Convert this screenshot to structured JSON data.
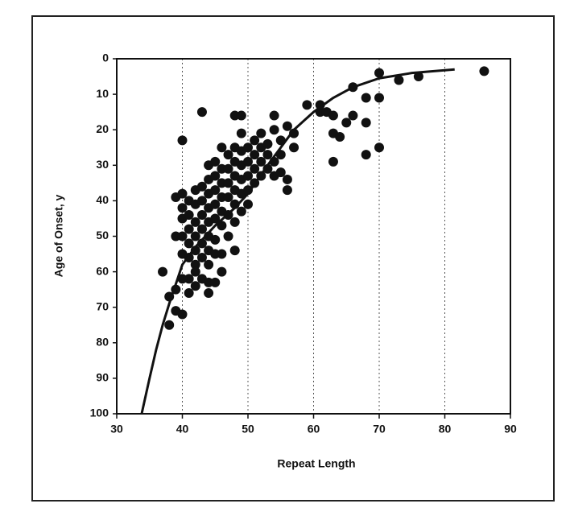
{
  "chart_data": {
    "type": "scatter",
    "xlabel": "Repeat Length",
    "ylabel": "Age of Onset, y",
    "xlim": [
      30,
      90
    ],
    "xticks": [
      30,
      40,
      50,
      60,
      70,
      80,
      90
    ],
    "ylim": [
      0,
      100
    ],
    "yticks": [
      0,
      10,
      20,
      30,
      40,
      50,
      60,
      70,
      80,
      90,
      100
    ],
    "y_inverted": true,
    "grid": "x",
    "series": [
      {
        "type": "scatter",
        "color": "#111111",
        "x": [
          37,
          38,
          38,
          39,
          39,
          40,
          40,
          41,
          43,
          39,
          39,
          40,
          40,
          44,
          43,
          44,
          45,
          46,
          46,
          48,
          48,
          49,
          49,
          52,
          52,
          53,
          54,
          54,
          55,
          56,
          56,
          56,
          57,
          57,
          59,
          61,
          61,
          62,
          63,
          63,
          63,
          64,
          65,
          66,
          66,
          68,
          68,
          68,
          70,
          70,
          70,
          73,
          76,
          86,
          40,
          40,
          40,
          41,
          41,
          41,
          41,
          41,
          42,
          42,
          42,
          42,
          42,
          42,
          43,
          43,
          43,
          43,
          43,
          43,
          44,
          44,
          44,
          44,
          44,
          44,
          44,
          45,
          45,
          45,
          45,
          45,
          45,
          46,
          46,
          46,
          46,
          46,
          46,
          47,
          47,
          47,
          47,
          47,
          47,
          48,
          48,
          48,
          48,
          48,
          48,
          49,
          49,
          49,
          49,
          49,
          50,
          50,
          50,
          50,
          50,
          51,
          51,
          51,
          51,
          52,
          52,
          53,
          53,
          54,
          54,
          55,
          55,
          41,
          42,
          42,
          40,
          45,
          44
        ],
        "values": [
          60,
          67,
          75,
          71,
          65,
          72,
          23,
          66,
          15,
          39,
          50,
          50,
          55,
          66,
          62,
          63,
          63,
          60,
          55,
          54,
          16,
          16,
          21,
          21,
          25,
          27,
          16,
          20,
          23,
          19,
          34,
          37,
          25,
          21,
          13,
          15,
          13,
          15,
          16,
          21,
          29,
          22,
          18,
          16,
          8,
          11,
          18,
          27,
          4,
          11,
          25,
          6,
          5,
          3.5,
          45,
          42,
          38,
          40,
          44,
          48,
          52,
          56,
          37,
          41,
          46,
          50,
          54,
          58,
          36,
          40,
          44,
          48,
          52,
          56,
          30,
          34,
          38,
          42,
          46,
          50,
          54,
          29,
          33,
          37,
          41,
          45,
          51,
          25,
          31,
          35,
          39,
          43,
          47,
          27,
          31,
          35,
          39,
          44,
          50,
          25,
          29,
          33,
          37,
          41,
          46,
          26,
          30,
          34,
          38,
          43,
          25,
          29,
          33,
          37,
          41,
          23,
          27,
          31,
          35,
          29,
          33,
          24,
          31,
          29,
          33,
          27,
          32,
          62,
          64,
          60,
          62,
          55,
          58
        ]
      },
      {
        "type": "line",
        "color": "#111111",
        "x": [
          33.8,
          35,
          36,
          37,
          38,
          40,
          42,
          45,
          48,
          50,
          53,
          55,
          57,
          60,
          63,
          66,
          70,
          75,
          81.5
        ],
        "values": [
          100,
          90,
          82,
          75,
          69,
          58,
          53,
          47,
          42,
          38,
          30,
          25,
          20,
          15,
          11,
          8,
          5.5,
          4,
          3
        ]
      }
    ]
  }
}
